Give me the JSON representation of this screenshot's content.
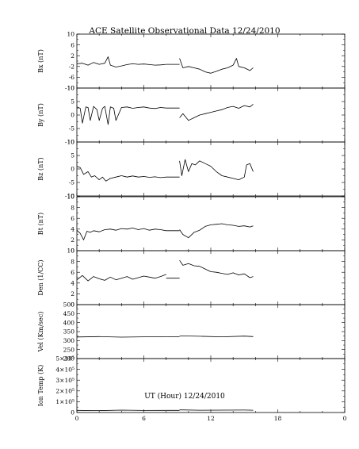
{
  "chart_data": [
    {
      "type": "line",
      "ylabel": "Bx (nT)",
      "ylim": [
        -10,
        10
      ],
      "yticks": [
        "10",
        "6",
        "2",
        "-2",
        "-6",
        "-10"
      ],
      "segments": [
        {
          "x": [
            0,
            0.5,
            1,
            1.5,
            2,
            2.5,
            2.8,
            3,
            3.5,
            4,
            4.5,
            5,
            5.5,
            6,
            6.5,
            7,
            7.5,
            8
          ],
          "y": [
            -1,
            -0.8,
            -1.5,
            -0.5,
            -1.2,
            -0.8,
            1.6,
            -1.5,
            -2.2,
            -1.8,
            -1.3,
            -1,
            -1.2,
            -1.1,
            -1.3,
            -1.5,
            -1.4,
            -1.2
          ]
        },
        {
          "x": [
            8,
            9.2
          ],
          "y": [
            -1.2,
            -1.2
          ]
        },
        {
          "x": [
            9.2,
            9.5,
            10,
            10.5,
            11,
            11.5,
            12,
            12.5,
            13,
            13.5,
            14,
            14.3,
            14.5,
            15,
            15.5,
            15.8
          ],
          "y": [
            1,
            -2.5,
            -2,
            -2.5,
            -3,
            -4,
            -4.5,
            -3.8,
            -3,
            -2.5,
            -1.5,
            1,
            -2,
            -2.5,
            -3.5,
            -2.5
          ]
        }
      ]
    },
    {
      "type": "line",
      "ylabel": "By (nT)",
      "ylim": [
        -10,
        10
      ],
      "yticks": [
        "10",
        "5",
        "0",
        "-5",
        "-10"
      ],
      "segments": [
        {
          "x": [
            0,
            0.3,
            0.5,
            0.8,
            1,
            1.2,
            1.5,
            1.8,
            2,
            2.3,
            2.5,
            2.8,
            3,
            3.3,
            3.5,
            4,
            4.5,
            5,
            5.5,
            6,
            6.5,
            7,
            7.5,
            8
          ],
          "y": [
            3,
            2.5,
            -3,
            3,
            2.8,
            -2,
            3.2,
            2,
            -2,
            2.5,
            3.2,
            -3.5,
            3,
            2.5,
            -2,
            2.8,
            3,
            2.5,
            2.8,
            3,
            2.6,
            2.4,
            2.8,
            2.6
          ]
        },
        {
          "x": [
            8,
            9.2
          ],
          "y": [
            2.6,
            2.6
          ]
        },
        {
          "x": [
            9.2,
            9.5,
            10,
            10.5,
            11,
            11.5,
            12,
            12.5,
            13,
            13.5,
            14,
            14.5,
            15,
            15.5,
            15.8
          ],
          "y": [
            -1,
            0.5,
            -2,
            -1,
            0,
            0.5,
            1,
            1.5,
            2,
            2.8,
            3.2,
            2.5,
            3.5,
            3,
            4
          ]
        }
      ]
    },
    {
      "type": "line",
      "ylabel": "Bz (nT)",
      "ylim": [
        -10,
        10
      ],
      "yticks": [
        "10",
        "5",
        "0",
        "-5",
        "-10"
      ],
      "segments": [
        {
          "x": [
            0,
            0.3,
            0.6,
            1,
            1.3,
            1.6,
            2,
            2.3,
            2.6,
            3,
            3.5,
            4,
            4.5,
            5,
            5.5,
            6,
            6.5,
            7,
            7.5,
            8
          ],
          "y": [
            1,
            0.5,
            -2,
            -1,
            -3,
            -2.5,
            -4,
            -3,
            -4.5,
            -3.5,
            -3,
            -2.5,
            -3,
            -2.6,
            -3,
            -2.8,
            -3.1,
            -2.9,
            -3.2,
            -3
          ]
        },
        {
          "x": [
            8,
            9.2
          ],
          "y": [
            -3,
            -3
          ]
        },
        {
          "x": [
            9.2,
            9.4,
            9.7,
            10,
            10.3,
            10.6,
            11,
            11.5,
            12,
            12.5,
            13,
            13.5,
            14,
            14.5,
            15,
            15.2,
            15.5,
            15.8
          ],
          "y": [
            3,
            -2.5,
            3.5,
            -1,
            2,
            1.5,
            3,
            2,
            1,
            -1,
            -2.5,
            -3,
            -3.5,
            -4,
            -3,
            1.5,
            2,
            -1
          ]
        }
      ]
    },
    {
      "type": "line",
      "ylabel": "Bt (nT)",
      "ylim": [
        0,
        10
      ],
      "yticks": [
        "10",
        "8",
        "6",
        "4",
        "2",
        "0"
      ],
      "segments": [
        {
          "x": [
            0,
            0.3,
            0.6,
            0.9,
            1.2,
            1.5,
            2,
            2.5,
            3,
            3.5,
            4,
            4.5,
            5,
            5.5,
            6,
            6.5,
            7,
            7.5,
            8
          ],
          "y": [
            3.8,
            3.2,
            2,
            3.6,
            3.4,
            3.7,
            3.5,
            3.9,
            4,
            3.8,
            4.1,
            4,
            4.2,
            3.9,
            4.1,
            3.8,
            4,
            3.9,
            3.7
          ]
        },
        {
          "x": [
            8,
            9.2
          ],
          "y": [
            3.7,
            3.7
          ]
        },
        {
          "x": [
            9.2,
            9.5,
            10,
            10.5,
            11,
            11.5,
            12,
            12.5,
            13,
            13.5,
            14,
            14.5,
            15,
            15.5,
            15.8
          ],
          "y": [
            3.9,
            3,
            2.4,
            3.4,
            3.8,
            4.5,
            4.8,
            4.9,
            5,
            4.8,
            4.7,
            4.5,
            4.6,
            4.4,
            4.6
          ]
        }
      ]
    },
    {
      "type": "line",
      "ylabel": "Den (1/CC)",
      "ylim": [
        0,
        10
      ],
      "yticks": [
        "10",
        "8",
        "6",
        "4",
        "2",
        "0"
      ],
      "segments": [
        {
          "x": [
            0,
            0.5,
            1,
            1.5,
            2,
            2.5,
            3,
            3.5,
            4,
            4.5,
            5,
            5.5,
            6,
            6.5,
            7,
            7.5,
            8
          ],
          "y": [
            4.6,
            5.4,
            4.4,
            5.2,
            4.8,
            4.5,
            5.1,
            4.6,
            4.9,
            5.2,
            4.7,
            5,
            5.3,
            5.1,
            4.9,
            5.2,
            5.6
          ]
        },
        {
          "x": [
            8,
            9.2
          ],
          "y": [
            4.9,
            4.9
          ]
        },
        {
          "x": [
            9.2,
            9.5,
            10,
            10.5,
            11,
            11.5,
            12,
            12.5,
            13,
            13.5,
            14,
            14.5,
            15,
            15.5,
            15.8
          ],
          "y": [
            8.2,
            7.3,
            7.6,
            7.2,
            7.1,
            6.6,
            6.1,
            6,
            5.8,
            5.6,
            5.9,
            5.5,
            5.7,
            5,
            5.2
          ]
        }
      ]
    },
    {
      "type": "line",
      "ylabel": "Vel (Km/sec)",
      "ylim": [
        200,
        500
      ],
      "yticks": [
        "500",
        "450",
        "400",
        "350",
        "300",
        "250",
        "200"
      ],
      "segments": [
        {
          "x": [
            0,
            2,
            4,
            6,
            8
          ],
          "y": [
            320,
            322,
            319,
            321,
            321
          ]
        },
        {
          "x": [
            8,
            9.2
          ],
          "y": [
            321,
            321
          ]
        },
        {
          "x": [
            9.2,
            11,
            13,
            15,
            15.8
          ],
          "y": [
            326,
            324,
            321,
            325,
            322
          ]
        }
      ]
    },
    {
      "type": "line",
      "ylabel": "Ion Temp (K)",
      "ylim": [
        0,
        500000
      ],
      "yticks": [
        "5×10⁵",
        "4×10⁵",
        "3×10⁵",
        "2×10⁵",
        "1×10⁵",
        "0"
      ],
      "segments": [
        {
          "x": [
            0,
            2,
            4,
            6,
            8
          ],
          "y": [
            20000,
            18000,
            22000,
            19000,
            20000
          ]
        },
        {
          "x": [
            8,
            9.2
          ],
          "y": [
            20000,
            20000
          ]
        },
        {
          "x": [
            9.2,
            11,
            13,
            15,
            15.8
          ],
          "y": [
            24000,
            21000,
            22000,
            23000,
            21000
          ]
        }
      ]
    }
  ],
  "title": "ACE Satellite Observational Data   12/24/2010",
  "xlabel": "UT (Hour)   12/24/2010",
  "xlim": [
    0,
    24
  ],
  "xticks": [
    "0",
    "6",
    "12",
    "18",
    "0"
  ],
  "colors": {
    "line": "#000000",
    "axis": "#000000",
    "background": "#ffffff"
  }
}
